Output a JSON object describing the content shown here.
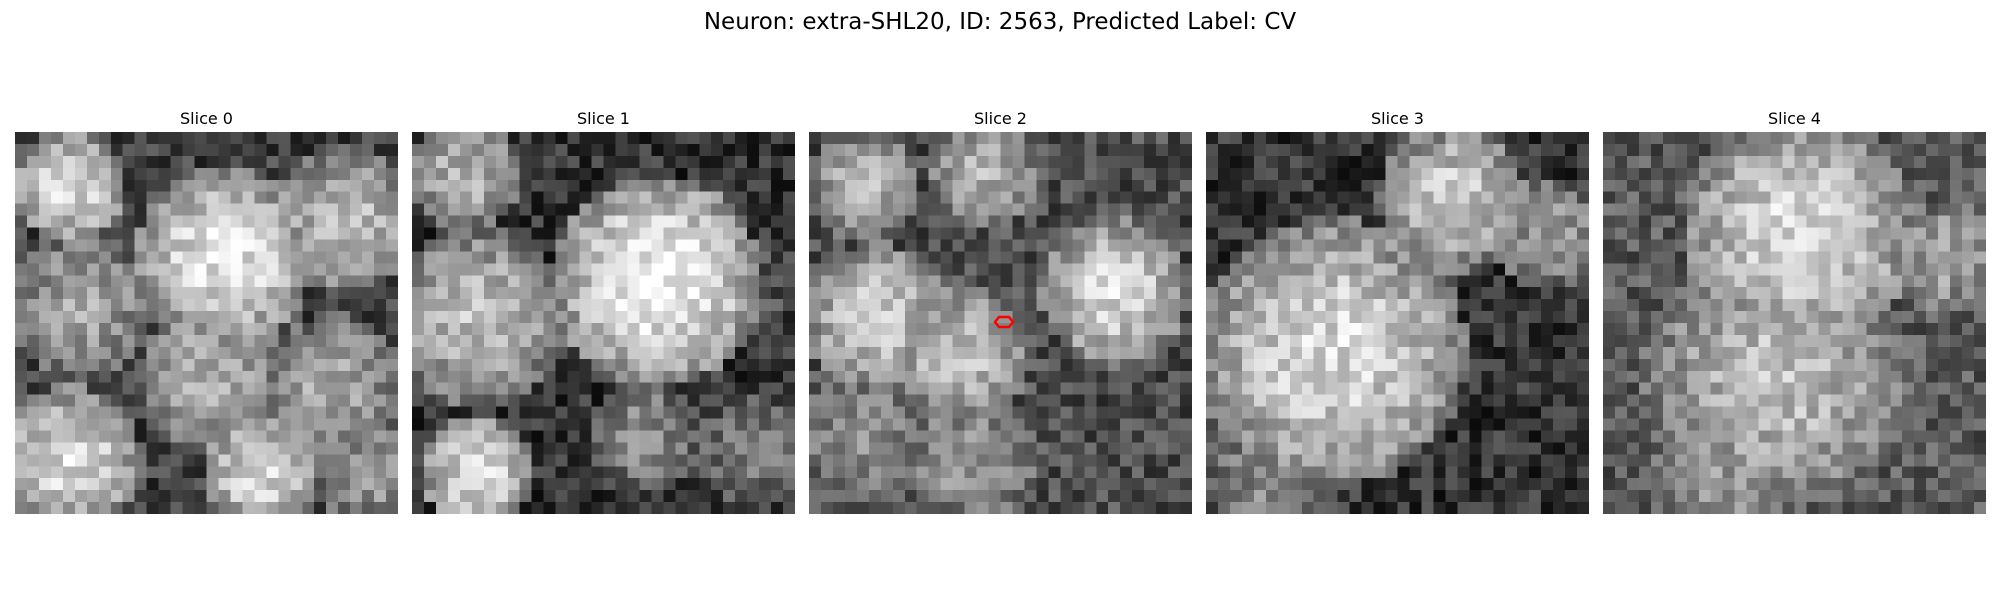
{
  "figure": {
    "title": "Neuron: extra-SHL20, ID: 2563, Predicted Label: CV"
  },
  "panels": [
    {
      "title": "Slice 0",
      "seed": 11
    },
    {
      "title": "Slice 1",
      "seed": 23
    },
    {
      "title": "Slice 2",
      "seed": 37,
      "marker": {
        "shape": "red-hexagon",
        "color": "#ff0000"
      }
    },
    {
      "title": "Slice 3",
      "seed": 41
    },
    {
      "title": "Slice 4",
      "seed": 53
    }
  ],
  "image_grid": {
    "cells": 32,
    "colormap": "gray"
  }
}
